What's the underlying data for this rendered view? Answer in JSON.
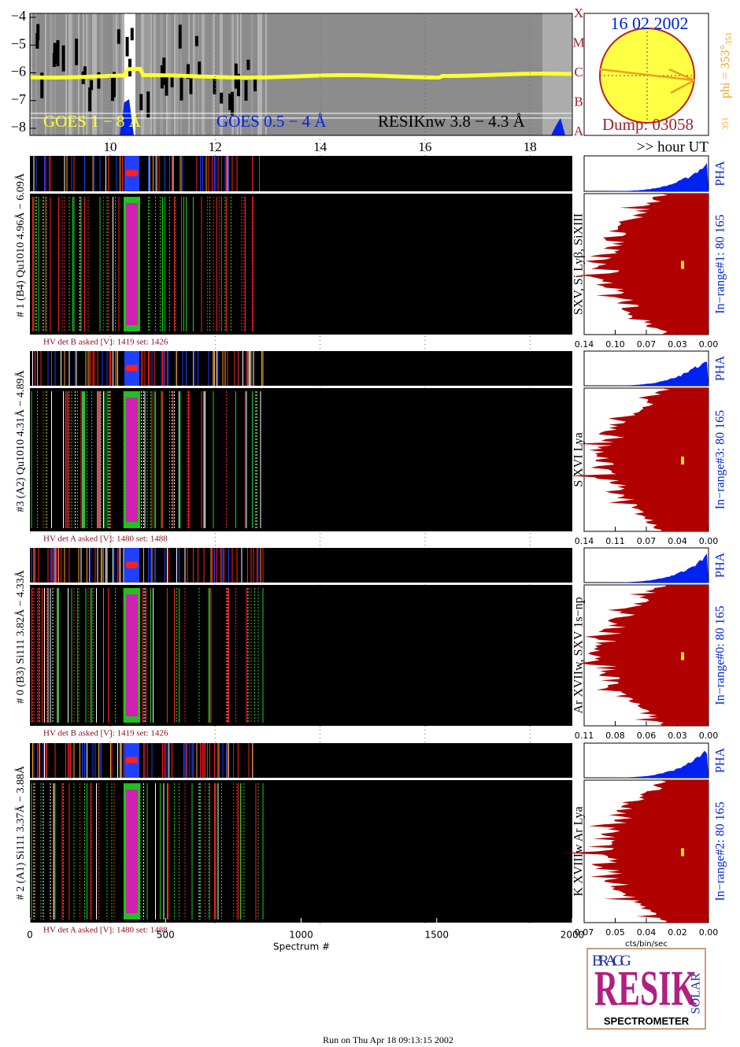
{
  "goes": {
    "yticks": [
      "−4",
      "−5",
      "−6",
      "−7",
      "−8"
    ],
    "classes": [
      "X",
      "M",
      "C",
      "B",
      "A"
    ],
    "hours": [
      "10",
      "12",
      "14",
      "16",
      "18"
    ],
    "legend": [
      "GOES 1 − 8 Å",
      "GOES 0.5 − 4 Å",
      "RESIKnw 3.8 − 4.3 Å"
    ],
    "xlabel": ">> hour UT"
  },
  "sun": {
    "date": "16 02 2002",
    "dump": "Dump: 03058",
    "phi": "phi = 353°",
    "phi_sub": "351",
    "corner": "351"
  },
  "detectors": [
    {
      "label": "# 1 (B4) Qu1010 4.96Å − 6.09Å",
      "hv": "HV det B asked [V]:  1419 set:  1426",
      "lines": "SXV, Si Lyβ, SiXIII",
      "pha": "PHA",
      "range": "In−range#1:   80 165",
      "ticks": [
        "0.14",
        "0.10",
        "0.07",
        "0.03",
        "0.00"
      ]
    },
    {
      "label": "#3 (A2) Qu1010  4.31Å − 4.89Å",
      "hv": "HV det A asked [V]:  1480 set:  1488",
      "lines": "S XVI Lya",
      "pha": "PHA",
      "range": "In−range#3:   80 165",
      "ticks": [
        "0.14",
        "0.11",
        "0.07",
        "0.04",
        "0.00"
      ]
    },
    {
      "label": "# 0 (B3) Si111  3.82Å − 4.33Å",
      "hv": "HV det B asked [V]:  1419 set:  1426",
      "lines": "Ar XVIIw,  SXV  1s−np",
      "pha": "PHA",
      "range": "In−range#0:   80 165",
      "ticks": [
        "0.11",
        "0.08",
        "0.06",
        "0.03",
        "0.00"
      ]
    },
    {
      "label": "# 2 (A1) Si111  3.37Å − 3.88Å",
      "hv": "HV det A asked [V]:  1480 set:  1488",
      "lines": "K XVIIIw   Ar Lya",
      "pha": "PHA",
      "range": "In−range#2:   80 165",
      "ticks": [
        "0.07",
        "0.05",
        "0.04",
        "0.02",
        "0.00"
      ]
    }
  ],
  "spectrum_axis": {
    "ticks": [
      "0",
      "500",
      "1000",
      "1500",
      "2000"
    ],
    "label": "Spectrum #"
  },
  "hist_axis_label": "cts/bin/sec",
  "logo": {
    "bragg": "BRAGG",
    "resik": "RESIK",
    "solar": "SOLAR",
    "text": "SPECTROMETER"
  },
  "footer": "Run on Thu Apr 18 09:13:15 2002"
}
